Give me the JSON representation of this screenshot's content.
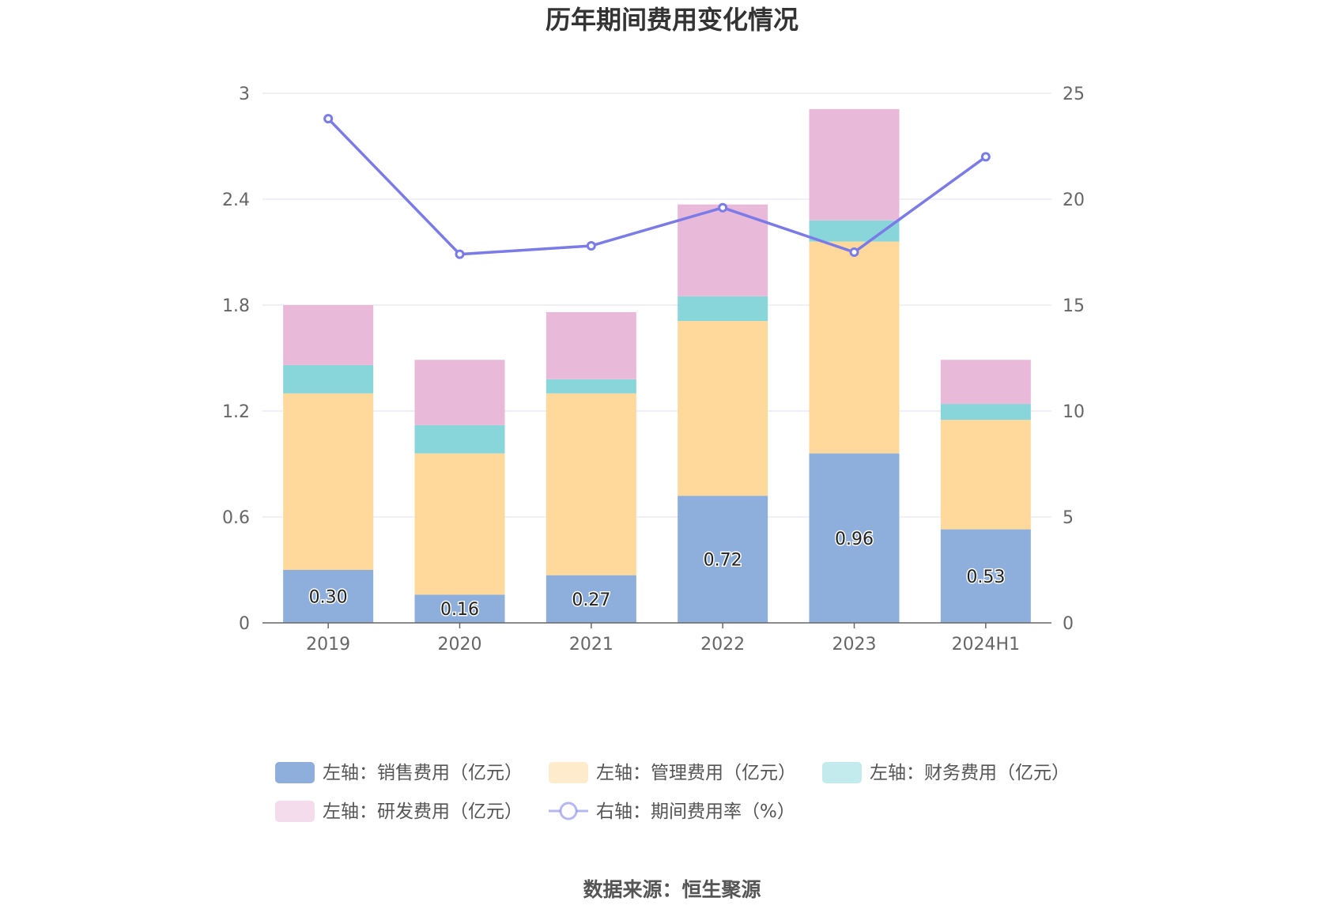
{
  "chart_data": {
    "type": "bar",
    "title": "历年期间费用变化情况",
    "categories": [
      "2019",
      "2020",
      "2021",
      "2022",
      "2023",
      "2024H1"
    ],
    "stacked": true,
    "y_left": {
      "lim": [
        0,
        3
      ],
      "ticks": [
        "0",
        "0.6",
        "1.2",
        "1.8",
        "2.4",
        "3"
      ]
    },
    "y_right": {
      "lim": [
        0,
        25
      ],
      "ticks": [
        "0",
        "5",
        "10",
        "15",
        "20",
        "25"
      ]
    },
    "series": [
      {
        "name": "左轴：销售费用（亿元）",
        "type": "bar",
        "axis": "left",
        "color": "#8eaedb",
        "values": [
          0.3,
          0.16,
          0.27,
          0.72,
          0.96,
          0.53
        ],
        "labels": [
          "0.30",
          "0.16",
          "0.27",
          "0.72",
          "0.96",
          "0.53"
        ]
      },
      {
        "name": "左轴：管理费用（亿元）",
        "type": "bar",
        "axis": "left",
        "color": "#ffd99b",
        "values": [
          1.0,
          0.8,
          1.03,
          0.99,
          1.2,
          0.62
        ]
      },
      {
        "name": "左轴：财务费用（亿元）",
        "type": "bar",
        "axis": "left",
        "color": "#88d6da",
        "values": [
          0.16,
          0.16,
          0.08,
          0.14,
          0.12,
          0.09
        ]
      },
      {
        "name": "左轴：研发费用（亿元）",
        "type": "bar",
        "axis": "left",
        "color": "#e9b9da",
        "values": [
          0.34,
          0.37,
          0.38,
          0.52,
          0.63,
          0.25
        ]
      },
      {
        "name": "右轴：期间费用率（%）",
        "type": "line",
        "axis": "right",
        "color": "#7b7be8",
        "values": [
          23.8,
          17.4,
          17.8,
          19.6,
          17.5,
          22.0
        ]
      }
    ],
    "grid": true,
    "legend_position": "bottom"
  },
  "source_text": "数据来源：恒生聚源"
}
